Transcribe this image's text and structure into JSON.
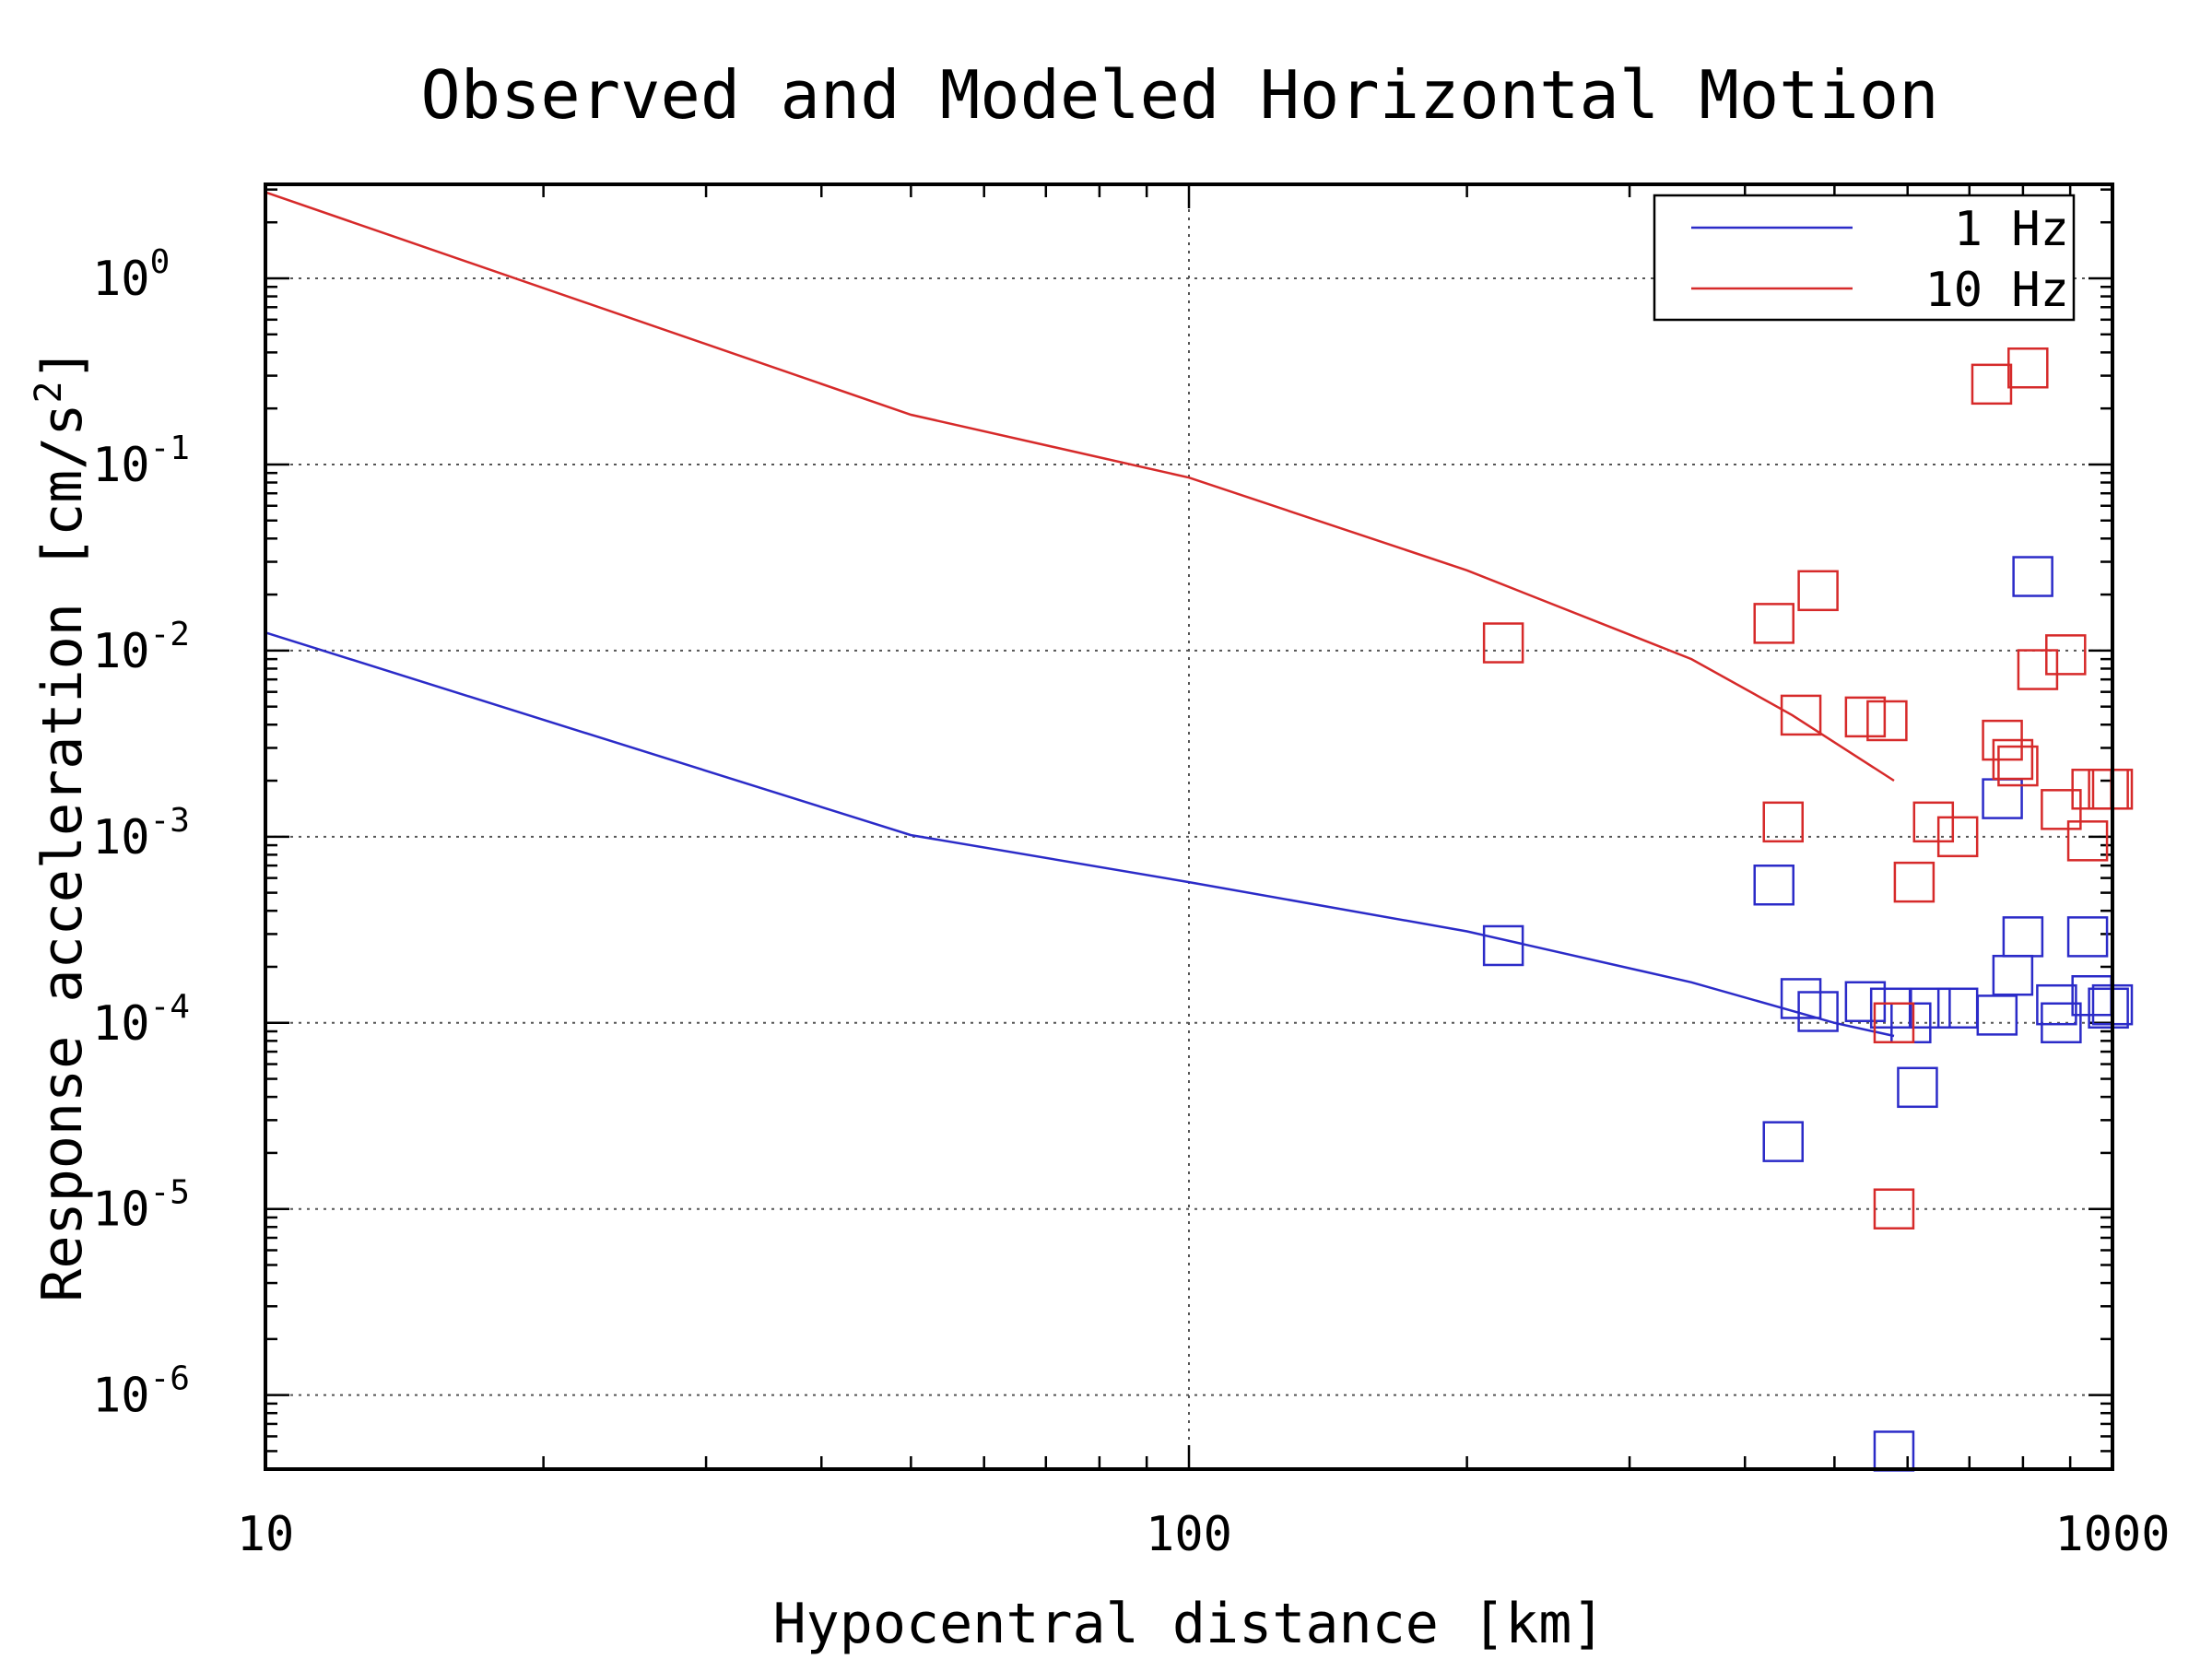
{
  "chart_data": {
    "type": "scatter",
    "title": "Observed and Modeled Horizontal Motion",
    "xlabel": "Hypocentral distance [km]",
    "ylabel_base": "Response acceleration [cm/s",
    "ylabel_sup": "2",
    "ylabel_end": "]",
    "x_scale": "log",
    "y_scale": "log",
    "xlim": [
      10,
      1000
    ],
    "ylim": [
      4e-07,
      3.2
    ],
    "grid": true,
    "legend_position": "top-right",
    "x_ticks": [
      {
        "value": 10,
        "label": "10"
      },
      {
        "value": 100,
        "label": "100"
      },
      {
        "value": 1000,
        "label": "1000"
      }
    ],
    "y_ticks": [
      {
        "value": 1,
        "base": "10",
        "exp": "0"
      },
      {
        "value": 0.1,
        "base": "10",
        "exp": "-1"
      },
      {
        "value": 0.01,
        "base": "10",
        "exp": "-2"
      },
      {
        "value": 0.001,
        "base": "10",
        "exp": "-3"
      },
      {
        "value": 0.0001,
        "base": "10",
        "exp": "-4"
      },
      {
        "value": 1e-05,
        "base": "10",
        "exp": "-5"
      },
      {
        "value": 1e-06,
        "base": "10",
        "exp": "-6"
      }
    ],
    "series": [
      {
        "name": "1 Hz",
        "color": "#2b2bc8",
        "model_line": {
          "x": [
            10,
            50,
            100,
            200,
            350,
            500,
            580
          ],
          "y": [
            0.0125,
            0.00102,
            0.00057,
            0.00031,
            0.000165,
            0.0001,
            8.5e-05
          ]
        },
        "observed": {
          "x": [
            219,
            430,
            440,
            460,
            480,
            540,
            575,
            580,
            605,
            615,
            635,
            680,
            750,
            760,
            780,
            800,
            820,
            870,
            880,
            940,
            950,
            990,
            1000
          ],
          "y": [
            0.00026,
            0.00055,
            2.3e-05,
            0.000135,
            0.000115,
            0.00013,
            0.00012,
            5e-07,
            0.0001,
            4.5e-05,
            0.00012,
            0.00012,
            0.00011,
            0.0016,
            0.00018,
            0.00029,
            0.025,
            0.000125,
            0.0001,
            0.00029,
            0.00014,
            0.00012,
            0.000125
          ]
        }
      },
      {
        "name": "10 Hz",
        "color": "#d62a2a",
        "model_line": {
          "x": [
            10,
            50,
            100,
            200,
            350,
            450,
            580
          ],
          "y": [
            2.9,
            0.185,
            0.085,
            0.027,
            0.009,
            0.0045,
            0.002
          ]
        },
        "observed": {
          "x": [
            219,
            430,
            440,
            460,
            480,
            540,
            570,
            580,
            580,
            610,
            640,
            680,
            740,
            760,
            780,
            790,
            810,
            830,
            880,
            890,
            940,
            950,
            990,
            1000
          ],
          "y": [
            0.011,
            0.014,
            0.0012,
            0.0045,
            0.021,
            0.0044,
            0.0042,
            1e-05,
            0.0001,
            0.00057,
            0.0012,
            0.001,
            0.27,
            0.0033,
            0.0026,
            0.0024,
            0.33,
            0.0079,
            0.0014,
            0.0095,
            0.00095,
            0.0018,
            0.0018,
            0.0018
          ]
        }
      }
    ]
  }
}
